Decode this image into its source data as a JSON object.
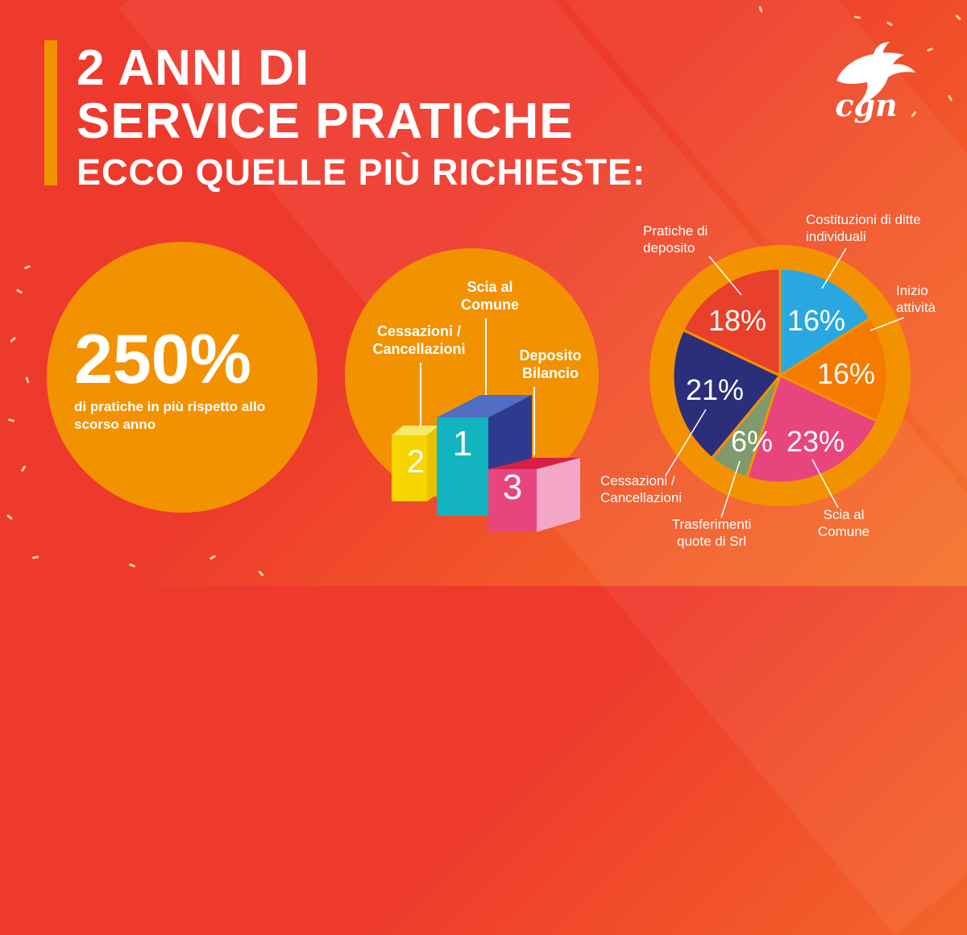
{
  "header": {
    "line1": "2 ANNI DI",
    "line2": "SERVICE PRATICHE",
    "line3": "ECCO QUELLE PIÙ RICHIESTE:"
  },
  "brand": {
    "name": "cgn",
    "icon": "dolphin-icon"
  },
  "stat": {
    "value": "250%",
    "caption": "di pratiche in più rispetto allo scorso anno"
  },
  "podium": {
    "first": {
      "rank": "1",
      "label": "Scia al Comune"
    },
    "second": {
      "rank": "2",
      "label": "Cessazioni / Cancellazioni"
    },
    "third": {
      "rank": "3",
      "label": "Deposito Bilancio"
    }
  },
  "colors": {
    "background": "#ee3a2c",
    "orange": "#f39200",
    "white": "#ffffff"
  },
  "chart_data": {
    "type": "pie",
    "title": "",
    "slices": [
      {
        "label": "Costituzioni di ditte individuali",
        "value": 16,
        "display": "16%",
        "color": "#2aa7e0"
      },
      {
        "label": "Inizio attività",
        "value": 16,
        "display": "16%",
        "color": "#f47a00"
      },
      {
        "label": "Scia al Comune",
        "value": 23,
        "display": "23%",
        "color": "#e8457f"
      },
      {
        "label": "Trasferimenti quote di Srl",
        "value": 6,
        "display": "6%",
        "color": "#7f9a6d"
      },
      {
        "label": "Cessazioni / Cancellazioni",
        "value": 21,
        "display": "21%",
        "color": "#2b2f7a"
      },
      {
        "label": "Pratiche di deposito",
        "value": 18,
        "display": "18%",
        "color": "#e8402a"
      }
    ]
  }
}
